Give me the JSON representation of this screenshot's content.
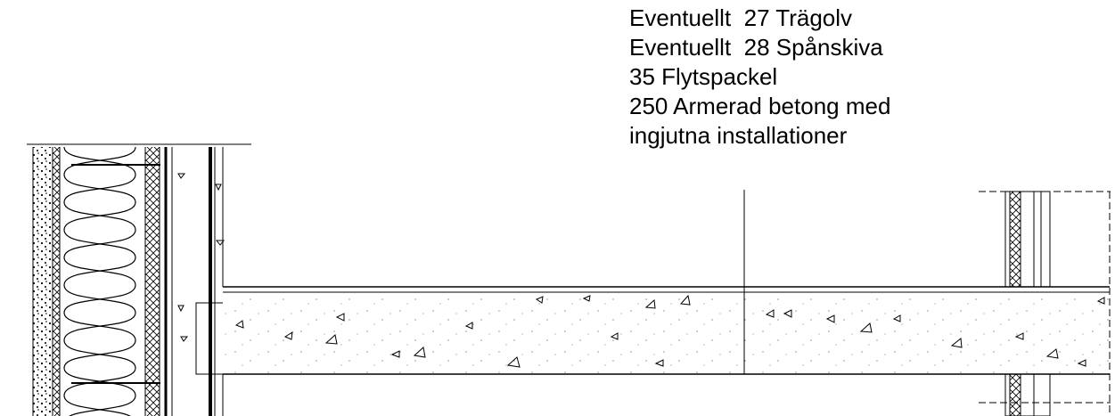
{
  "annotation": {
    "lines": [
      "Eventuellt  27 Trägolv",
      "Eventuellt  28 Spånskiva",
      "35 Flytspackel",
      "250 Armerad betong med",
      "ingjutna installationer"
    ]
  }
}
